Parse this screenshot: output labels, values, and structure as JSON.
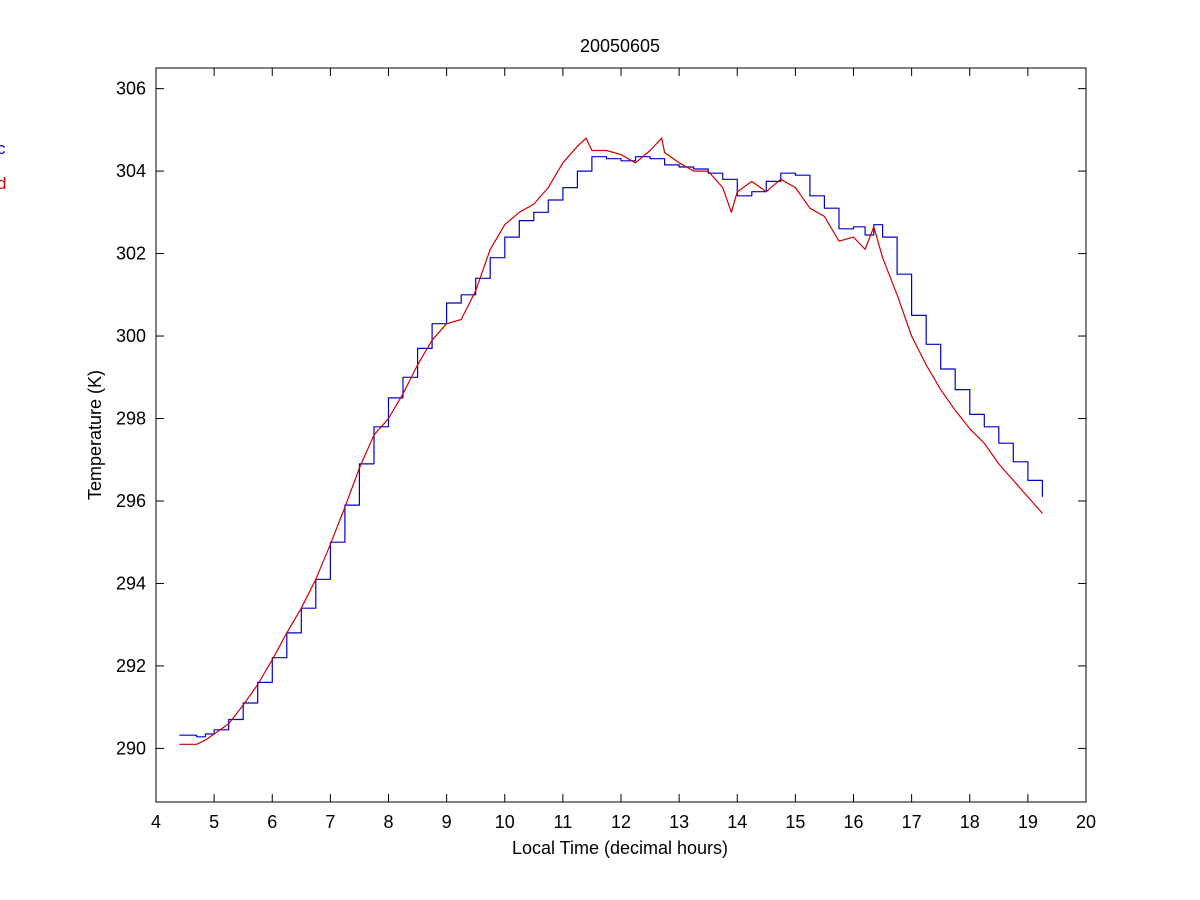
{
  "chart_data": {
    "type": "line",
    "title": "20050605",
    "xlabel": "Local Time (decimal hours)",
    "ylabel": "Temperature (K)",
    "xlim": [
      4,
      20
    ],
    "ylim": [
      288.7,
      306.5
    ],
    "xticks": [
      4,
      5,
      6,
      7,
      8,
      9,
      10,
      11,
      12,
      13,
      14,
      15,
      16,
      17,
      18,
      19,
      20
    ],
    "yticks": [
      290,
      292,
      294,
      296,
      298,
      300,
      302,
      304,
      306
    ],
    "grid": false,
    "legend_entries": [
      "c",
      "d"
    ],
    "series": [
      {
        "color": "#0000cc",
        "step": true,
        "x": [
          4.4,
          4.55,
          4.7,
          4.85,
          5.0,
          5.25,
          5.5,
          5.75,
          6.0,
          6.25,
          6.5,
          6.75,
          7.0,
          7.25,
          7.5,
          7.75,
          8.0,
          8.25,
          8.5,
          8.75,
          9.0,
          9.25,
          9.5,
          9.75,
          10.0,
          10.25,
          10.5,
          10.75,
          11.0,
          11.25,
          11.5,
          11.75,
          12.0,
          12.25,
          12.5,
          12.75,
          13.0,
          13.25,
          13.5,
          13.75,
          14.0,
          14.25,
          14.5,
          14.75,
          15.0,
          15.25,
          15.5,
          15.75,
          16.0,
          16.2,
          16.35,
          16.5,
          16.75,
          17.0,
          17.25,
          17.5,
          17.75,
          18.0,
          18.25,
          18.5,
          18.75,
          19.0,
          19.25
        ],
        "y": [
          290.32,
          290.32,
          290.28,
          290.35,
          290.45,
          290.7,
          291.1,
          291.6,
          292.2,
          292.8,
          293.4,
          294.1,
          295.0,
          295.9,
          296.9,
          297.8,
          298.5,
          299.0,
          299.7,
          300.3,
          300.8,
          301.0,
          301.4,
          301.9,
          302.4,
          302.8,
          303.0,
          303.3,
          303.6,
          304.0,
          304.35,
          304.3,
          304.25,
          304.35,
          304.3,
          304.15,
          304.1,
          304.05,
          303.95,
          303.8,
          303.4,
          303.5,
          303.75,
          303.95,
          303.9,
          303.4,
          303.1,
          302.6,
          302.65,
          302.45,
          302.7,
          302.4,
          301.5,
          300.5,
          299.8,
          299.2,
          298.7,
          298.1,
          297.8,
          297.4,
          296.95,
          296.5,
          296.1
        ]
      },
      {
        "color": "#cc0000",
        "step": false,
        "x": [
          4.4,
          4.55,
          4.7,
          4.85,
          5.0,
          5.25,
          5.5,
          5.75,
          6.0,
          6.25,
          6.5,
          6.75,
          7.0,
          7.25,
          7.5,
          7.75,
          8.0,
          8.25,
          8.5,
          8.75,
          9.0,
          9.25,
          9.5,
          9.75,
          10.0,
          10.25,
          10.5,
          10.75,
          11.0,
          11.25,
          11.4,
          11.5,
          11.75,
          12.0,
          12.25,
          12.5,
          12.7,
          12.75,
          13.0,
          13.25,
          13.5,
          13.75,
          13.9,
          14.0,
          14.25,
          14.5,
          14.75,
          15.0,
          15.25,
          15.5,
          15.75,
          16.0,
          16.2,
          16.35,
          16.5,
          16.75,
          17.0,
          17.25,
          17.5,
          17.75,
          18.0,
          18.25,
          18.5,
          18.75,
          19.0,
          19.25
        ],
        "y": [
          290.1,
          290.1,
          290.1,
          290.2,
          290.35,
          290.6,
          291.05,
          291.55,
          292.15,
          292.8,
          293.4,
          294.1,
          294.95,
          295.85,
          296.8,
          297.6,
          298.0,
          298.6,
          299.3,
          299.9,
          300.3,
          300.4,
          301.1,
          302.1,
          302.7,
          303.0,
          303.2,
          303.6,
          304.2,
          304.6,
          304.8,
          304.5,
          304.5,
          304.4,
          304.2,
          304.5,
          304.8,
          304.45,
          304.2,
          304.0,
          304.0,
          303.6,
          303.0,
          303.5,
          303.75,
          303.5,
          303.8,
          303.6,
          303.1,
          302.9,
          302.3,
          302.4,
          302.1,
          302.65,
          301.9,
          301.0,
          300.0,
          299.3,
          298.7,
          298.2,
          297.75,
          297.4,
          296.9,
          296.5,
          296.1,
          295.7
        ]
      }
    ]
  },
  "colors": {
    "series_c": "#0000cc",
    "series_d": "#cc0000",
    "axes": "#000000",
    "background": "#ffffff"
  }
}
